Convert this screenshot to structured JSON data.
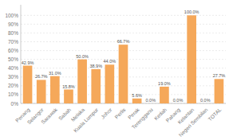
{
  "chart_data": {
    "type": "bar",
    "categories": [
      "Penang",
      "Selangor",
      "Sarawak",
      "Sabah",
      "Melaka",
      "Kuala Lumpur",
      "Johor",
      "Perlis",
      "Perak",
      "Terengganu",
      "Kedah",
      "Pahang",
      "Kelantan",
      "Negeri Sembilan",
      "TOTAL"
    ],
    "values": [
      42.9,
      26.7,
      31.0,
      15.8,
      50.0,
      38.9,
      44.0,
      66.7,
      5.6,
      0.0,
      19.0,
      0.0,
      100.0,
      0.0,
      27.7
    ],
    "value_labels": [
      "42.9%",
      "26.7%",
      "31.0%",
      "15.8%",
      "50.0%",
      "38.9%",
      "44.0%",
      "66.7%",
      "5.6%",
      "0.0%",
      "19.0%",
      "0.0%",
      "100.0%",
      "0.0%",
      "27.7%"
    ],
    "data_labels": true,
    "color": "#F5A85A",
    "ylim": [
      0,
      112
    ],
    "yticks": [
      {
        "value": 0,
        "label": "0%"
      },
      {
        "value": 10,
        "label": "10%"
      },
      {
        "value": 20,
        "label": "20%"
      },
      {
        "value": 30,
        "label": "30%"
      },
      {
        "value": 40,
        "label": "40%"
      },
      {
        "value": 50,
        "label": "50%"
      },
      {
        "value": 60,
        "label": "60%"
      },
      {
        "value": 70,
        "label": "70%"
      },
      {
        "value": 80,
        "label": "80%"
      },
      {
        "value": 90,
        "label": "90%"
      },
      {
        "value": 100,
        "label": "100%"
      }
    ],
    "grid": true
  }
}
